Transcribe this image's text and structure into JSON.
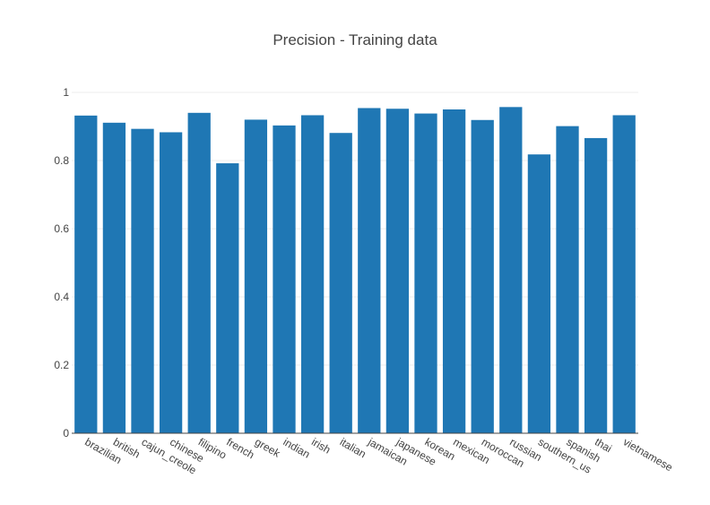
{
  "chart_data": {
    "type": "bar",
    "title": "Precision - Training data",
    "xlabel": "",
    "ylabel": "",
    "categories": [
      "brazilian",
      "british",
      "cajun_creole",
      "chinese",
      "filipino",
      "french",
      "greek",
      "indian",
      "irish",
      "italian",
      "jamaican",
      "japanese",
      "korean",
      "mexican",
      "moroccan",
      "russian",
      "southern_us",
      "spanish",
      "thai",
      "vietnamese"
    ],
    "values": [
      0.932,
      0.911,
      0.893,
      0.883,
      0.94,
      0.792,
      0.92,
      0.903,
      0.933,
      0.881,
      0.954,
      0.952,
      0.938,
      0.95,
      0.919,
      0.957,
      0.818,
      0.901,
      0.866,
      0.933
    ],
    "ylim": [
      0,
      1
    ],
    "yticks": [
      0,
      0.2,
      0.4,
      0.6,
      0.8,
      1
    ],
    "ytick_labels": [
      "0",
      "0.2",
      "0.4",
      "0.6",
      "0.8",
      "1"
    ],
    "grid": true,
    "legend": "none",
    "bar_color": "#1f77b4",
    "axis_color": "#444444",
    "grid_color": "#eeeeee",
    "text_color": "#444444"
  }
}
